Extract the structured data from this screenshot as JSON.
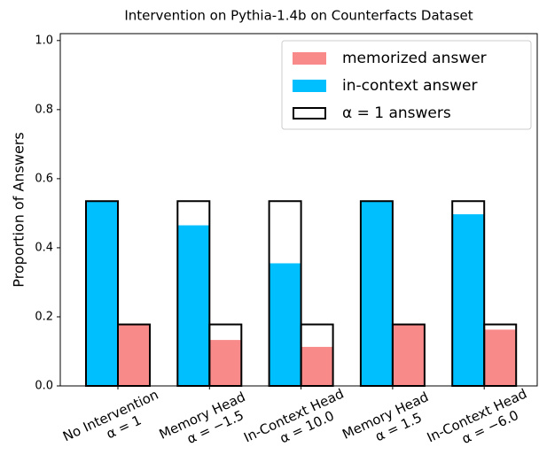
{
  "chart_data": {
    "type": "bar",
    "title": "Intervention on Pythia-1.4b on Counterfacts Dataset",
    "ylabel": "Proportion of Answers",
    "categories": [
      "No Intervention",
      "Memory Head",
      "In-Context Head",
      "Memory Head",
      "In-Context Head"
    ],
    "category_sublabels": [
      "α = 1",
      "α = −1.5",
      "α = 10.0",
      "α = 1.5",
      "α = −6.0"
    ],
    "series": [
      {
        "name": "memorized answer",
        "color": "#f88a8a",
        "values": [
          0.178,
          0.133,
          0.113,
          0.178,
          0.163
        ]
      },
      {
        "name": "in-context answer",
        "color": "#00bfff",
        "values": [
          0.535,
          0.465,
          0.355,
          0.535,
          0.497
        ]
      },
      {
        "name": "α = 1 answers",
        "color": "#000000",
        "in_context_values": [
          0.535,
          0.535,
          0.535,
          0.535,
          0.535
        ],
        "memorized_values": [
          0.178,
          0.178,
          0.178,
          0.178,
          0.178
        ]
      }
    ],
    "ylim": [
      0,
      1.02
    ],
    "yticks": [
      {
        "value": 0,
        "label": "0.0"
      },
      0.2,
      0.4,
      0.6,
      0.8,
      {
        "value": 1.0,
        "label": "1.0"
      }
    ],
    "legend": "upper right"
  }
}
